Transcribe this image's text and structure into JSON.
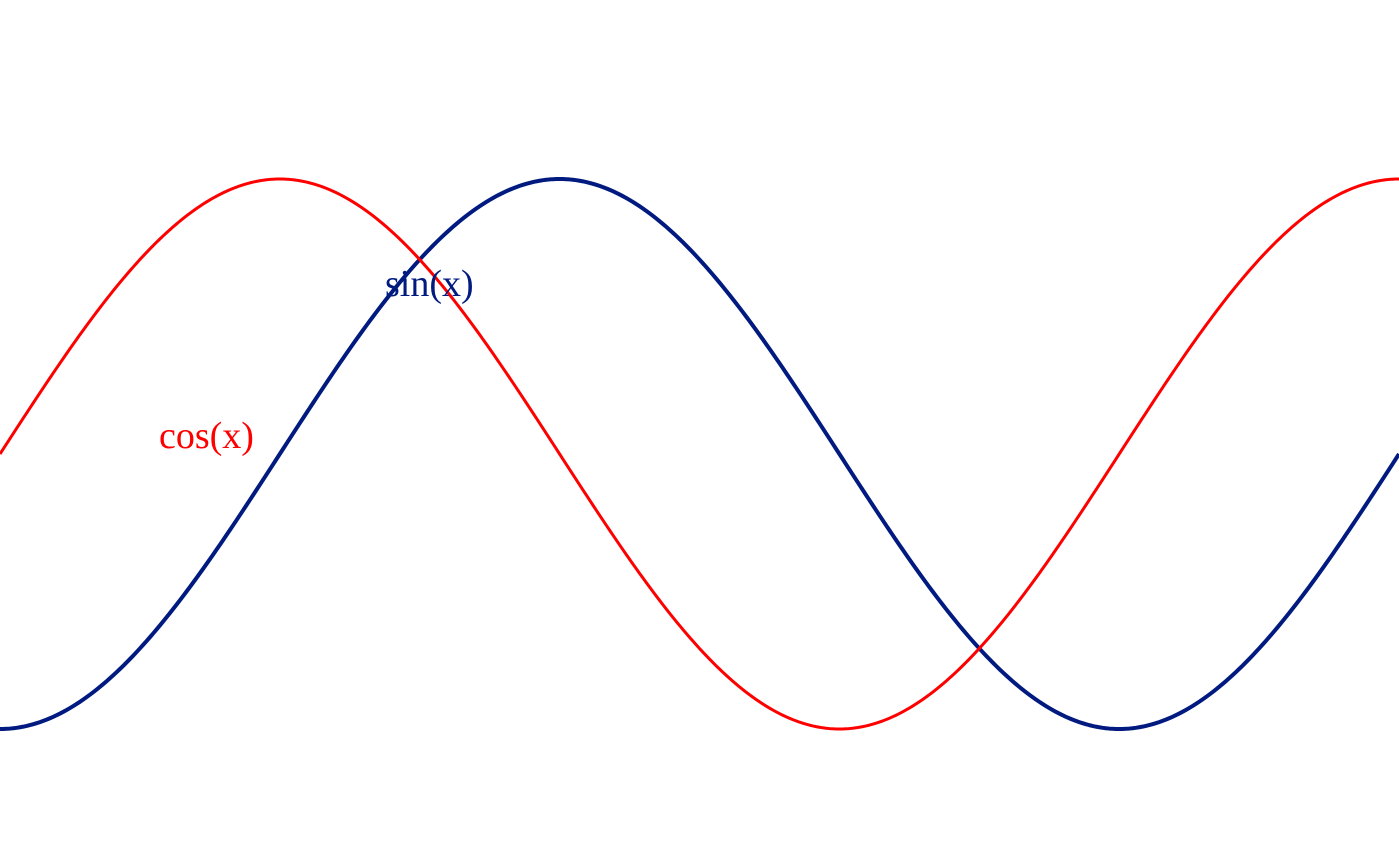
{
  "chart_data": {
    "type": "line",
    "title": "",
    "xlabel": "",
    "ylabel": "",
    "grid": false,
    "xlim": [
      -1.5708,
      6.2832
    ],
    "ylim": [
      -1.3,
      1.3
    ],
    "series": [
      {
        "name": "sin(x)",
        "function": "sin",
        "color": "#001a80",
        "x": [
          -1.5708,
          -1.3963,
          -1.2217,
          -1.0472,
          -0.8727,
          -0.6981,
          -0.5236,
          -0.3491,
          -0.1745,
          0.0,
          0.1745,
          0.3491,
          0.5236,
          0.6981,
          0.8727,
          1.0472,
          1.2217,
          1.3963,
          1.5708,
          1.7453,
          1.9199,
          2.0944,
          2.2689,
          2.4435,
          2.618,
          2.7925,
          2.9671,
          3.1416,
          3.3161,
          3.4907,
          3.6652,
          3.8397,
          4.0143,
          4.1888,
          4.3633,
          4.5379,
          4.7124,
          4.8869,
          5.0615,
          5.236,
          5.4105,
          5.5851,
          5.7596,
          5.9341,
          6.1087,
          6.2832
        ],
        "y": [
          -1.0,
          -0.985,
          -0.9397,
          -0.866,
          -0.766,
          -0.6428,
          -0.5,
          -0.342,
          -0.1736,
          0.0,
          0.1736,
          0.342,
          0.5,
          0.6428,
          0.766,
          0.866,
          0.9397,
          0.985,
          1.0,
          0.985,
          0.9397,
          0.866,
          0.766,
          0.6428,
          0.5,
          0.342,
          0.1736,
          0.0,
          -0.1736,
          -0.342,
          -0.5,
          -0.6428,
          -0.766,
          -0.866,
          -0.9397,
          -0.985,
          -1.0,
          -0.985,
          -0.9397,
          -0.866,
          -0.766,
          -0.6428,
          -0.5,
          -0.342,
          -0.1736,
          0.0
        ]
      },
      {
        "name": "cos(x)",
        "function": "cos",
        "color": "#ff0000",
        "x": [
          -1.5708,
          -1.3963,
          -1.2217,
          -1.0472,
          -0.8727,
          -0.6981,
          -0.5236,
          -0.3491,
          -0.1745,
          0.0,
          0.1745,
          0.3491,
          0.5236,
          0.6981,
          0.8727,
          1.0472,
          1.2217,
          1.3963,
          1.5708,
          1.7453,
          1.9199,
          2.0944,
          2.2689,
          2.4435,
          2.618,
          2.7925,
          2.9671,
          3.1416,
          3.3161,
          3.4907,
          3.6652,
          3.8397,
          4.0143,
          4.1888,
          4.3633,
          4.5379,
          4.7124,
          4.8869,
          5.0615,
          5.236,
          5.4105,
          5.5851,
          5.7596,
          5.9341,
          6.1087,
          6.2832
        ],
        "y": [
          0.0,
          0.1736,
          0.342,
          0.5,
          0.6428,
          0.766,
          0.866,
          0.9397,
          0.985,
          1.0,
          0.985,
          0.9397,
          0.866,
          0.766,
          0.6428,
          0.5,
          0.342,
          0.1736,
          0.0,
          -0.1736,
          -0.342,
          -0.5,
          -0.6428,
          -0.766,
          -0.866,
          -0.9397,
          -0.985,
          -1.0,
          -0.985,
          -0.9397,
          -0.866,
          -0.766,
          -0.6428,
          -0.5,
          -0.342,
          -0.1736,
          0.0,
          0.1736,
          0.342,
          0.5,
          0.6428,
          0.766,
          0.866,
          0.9397,
          0.985,
          1.0
        ]
      }
    ]
  }
}
